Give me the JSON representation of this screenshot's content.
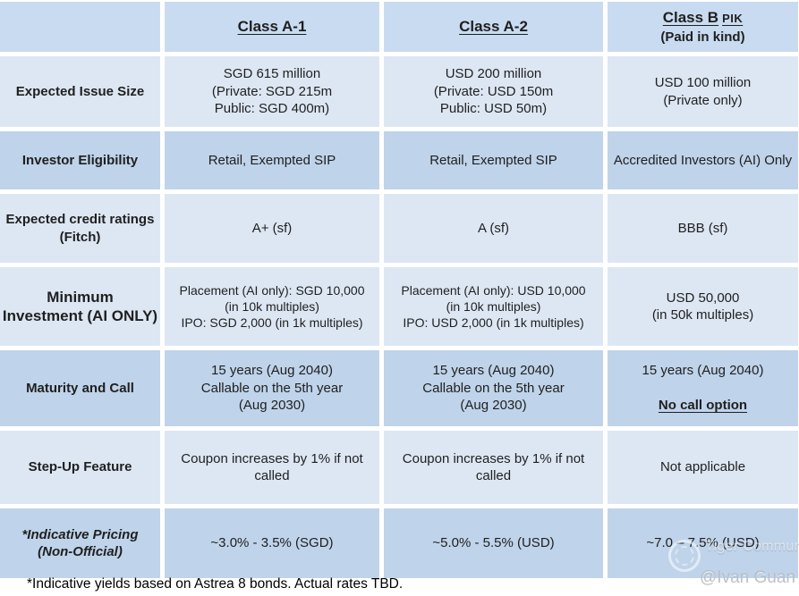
{
  "table": {
    "header": {
      "class_a1": "Class A-1",
      "class_a2": "Class A-2",
      "class_b_main": "Class B",
      "class_b_pik": "PIK",
      "class_b_sub": "(Paid in kind)"
    },
    "rows": [
      {
        "label": "Expected Issue Size",
        "cells": [
          "SGD 615 million\n(Private: SGD 215m\nPublic: SGD 400m)",
          "USD 200 million\n(Private: USD 150m\nPublic: USD 50m)",
          "USD 100 million\n(Private only)"
        ]
      },
      {
        "label": "Investor Eligibility",
        "cells": [
          "Retail, Exempted SIP",
          "Retail, Exempted SIP",
          "Accredited Investors (AI) Only"
        ]
      },
      {
        "label": "Expected credit ratings\n(Fitch)",
        "cells": [
          "A+ (sf)",
          "A (sf)",
          "BBB (sf)"
        ]
      },
      {
        "label": "Minimum\nInvestment (AI ONLY)",
        "cells": [
          "Placement (AI only): SGD 10,000\n(in 10k multiples)\nIPO: SGD 2,000 (in 1k multiples)",
          "Placement (AI only): USD 10,000\n(in 10k multiples)\nIPO: USD 2,000 (in 1k multiples)",
          "USD 50,000\n(in 50k multiples)"
        ]
      },
      {
        "label": "Maturity and Call",
        "cells": [
          "15 years (Aug 2040)\nCallable on the 5th year\n(Aug 2030)",
          "15 years (Aug 2040)\nCallable on the 5th year\n(Aug 2030)"
        ],
        "cell_b": {
          "line1": "15 years (Aug 2040)",
          "line2": "No call option"
        }
      },
      {
        "label": "Step-Up Feature",
        "cells": [
          "Coupon increases by 1% if not called",
          "Coupon increases by 1% if not called",
          "Not applicable"
        ]
      },
      {
        "label": "*Indicative Pricing\n(Non-Official)",
        "cells": [
          "~3.0% - 3.5% (SGD)",
          "~5.0% - 5.5% (USD)",
          "~7.0 – 7.5% (USD)"
        ]
      }
    ]
  },
  "footnote": "*Indicative yields based on Astrea 8 bonds. Actual rates TBD.",
  "watermark": {
    "brand": "Tiger Community",
    "handle": "@Ivan Guan"
  },
  "colors": {
    "row_header": "#c9dbf0",
    "row_medium": "#bfd3ea",
    "row_light": "#dde7f3",
    "text": "#1f1f1f"
  }
}
